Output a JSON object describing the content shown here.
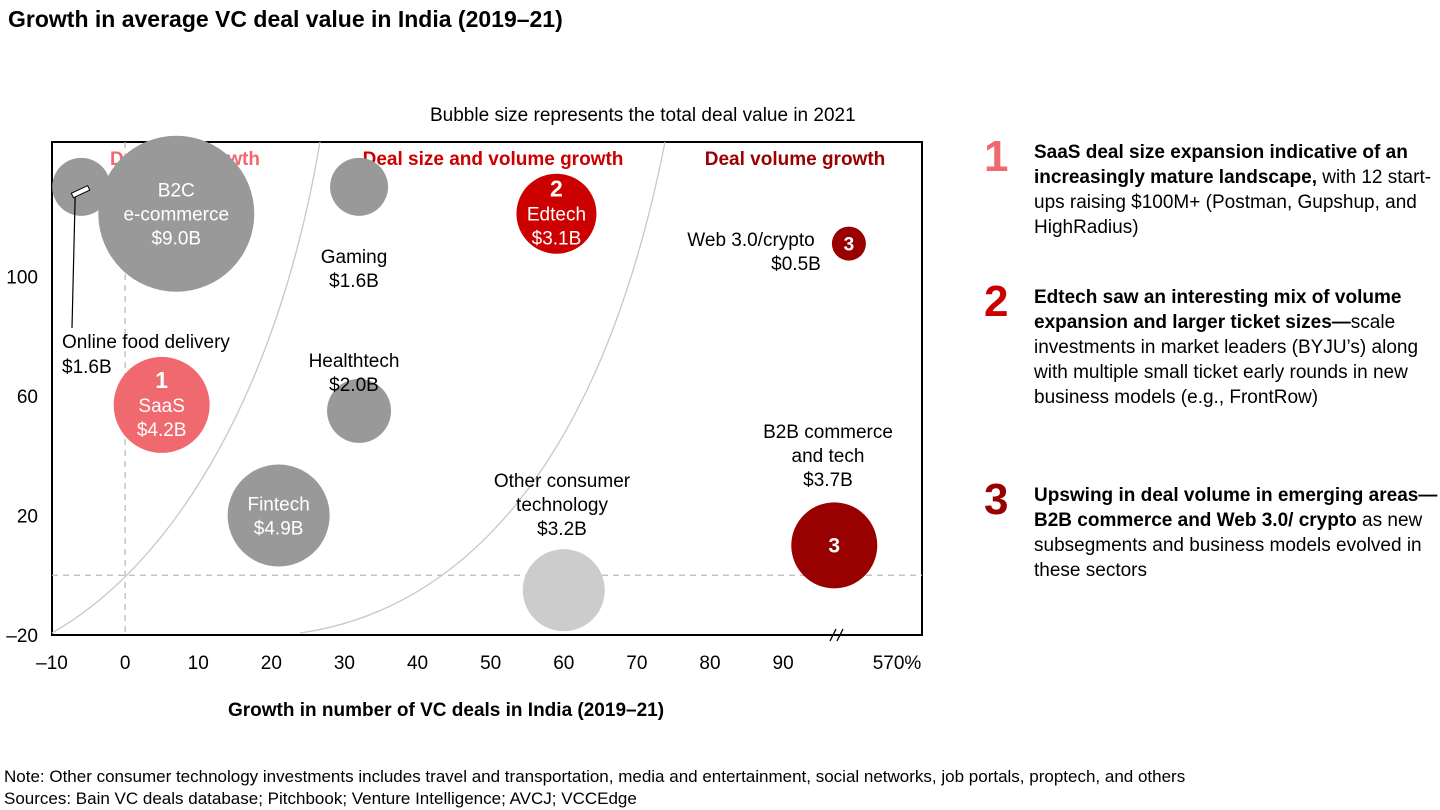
{
  "title": "Growth in average VC deal value in India (2019–21)",
  "subtitle": "Bubble size represents the total deal value in 2021",
  "chart_data": {
    "type": "scatter",
    "xlabel": "Growth in number of VC deals in India (2019–21)",
    "ylabel": "",
    "xlim": [
      -10,
      109
    ],
    "ylim": [
      -20,
      145
    ],
    "x_ticks": [
      "–10",
      "0",
      "10",
      "20",
      "30",
      "40",
      "50",
      "60",
      "70",
      "80",
      "90",
      "570%"
    ],
    "y_ticks": [
      "–20",
      "20",
      "60",
      "100"
    ],
    "regions": [
      {
        "label": "Deal size growth",
        "color": "#f0696f"
      },
      {
        "label": "Deal size and volume growth",
        "color": "#cc0000"
      },
      {
        "label": "Deal volume growth",
        "color": "#990000"
      }
    ],
    "bubbles": [
      {
        "name": "Online food delivery",
        "value": "$1.6B",
        "x": -6,
        "y": 130,
        "r": 29,
        "color": "#999999"
      },
      {
        "name": "B2C\ne-commerce",
        "value": "$9.0B",
        "x": 7,
        "y": 121,
        "r": 78,
        "color": "#999999"
      },
      {
        "name": "Gaming",
        "value": "$1.6B",
        "x": 32,
        "y": 130,
        "r": 29,
        "color": "#999999"
      },
      {
        "name": "Edtech",
        "value": "$3.1B",
        "x": 59,
        "y": 121,
        "r": 40,
        "color": "#cc0000",
        "marker": "2"
      },
      {
        "name": "Web 3.0/crypto",
        "value": "$0.5B",
        "x": 99,
        "y": 111,
        "r": 17,
        "color": "#990000",
        "marker": "3"
      },
      {
        "name": "SaaS",
        "value": "$4.2B",
        "x": 5,
        "y": 57,
        "r": 48,
        "color": "#f0696f",
        "marker": "1"
      },
      {
        "name": "Healthtech",
        "value": "$2.0B",
        "x": 32,
        "y": 55,
        "r": 32,
        "color": "#999999"
      },
      {
        "name": "Fintech",
        "value": "$4.9B",
        "x": 21,
        "y": 20,
        "r": 51,
        "color": "#999999"
      },
      {
        "name": "Other consumer\ntechnology",
        "value": "$3.2B",
        "x": 60,
        "y": -5,
        "r": 41,
        "color": "#cccccc"
      },
      {
        "name": "B2B commerce\nand tech",
        "value": "$3.7B",
        "x": 97,
        "y": 10,
        "r": 43,
        "color": "#990000",
        "marker": "3"
      }
    ],
    "grid": false,
    "legend": "none"
  },
  "callouts": [
    {
      "num": "1",
      "color": "#f0696f",
      "bold": "SaaS deal size expansion indicative of an increasingly mature landscape,",
      "text": " with 12 start-ups raising $100M+ (Postman, Gupshup, and HighRadius)"
    },
    {
      "num": "2",
      "color": "#cc0000",
      "bold": "Edtech saw an interesting mix of volume expansion and larger ticket sizes—",
      "text": "scale investments in market leaders (BYJU’s) along with multiple small ticket early rounds in new business models (e.g., FrontRow)"
    },
    {
      "num": "3",
      "color": "#990000",
      "bold": "Upswing in deal volume in emerging areas—B2B commerce and Web 3.0/ crypto",
      "text": " as new subsegments and business models evolved in these sectors"
    }
  ],
  "note": "Note: Other consumer technology investments includes travel and transportation, media and entertainment, social networks, job portals, proptech, and others",
  "sources": "Sources: Bain VC deals database; Pitchbook; Venture Intelligence; AVCJ; VCCEdge"
}
